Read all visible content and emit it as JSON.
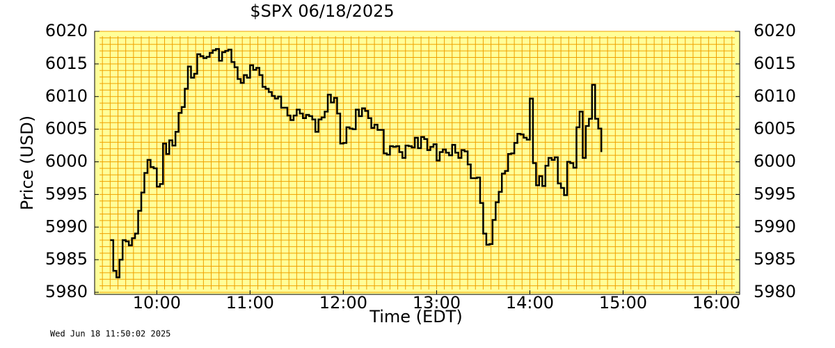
{
  "chart_data": {
    "type": "step",
    "title": "$SPX  06/18/2025",
    "ylabel": "Price (USD)",
    "xlabel": "Time (EDT)",
    "timestamp": "Wed Jun 18 11:50:02 2025",
    "xlim": [
      560,
      975
    ],
    "ylim": [
      5980,
      6020
    ],
    "xticks": [
      {
        "value": 600,
        "label": "10:00"
      },
      {
        "value": 660,
        "label": "11:00"
      },
      {
        "value": 720,
        "label": "12:00"
      },
      {
        "value": 780,
        "label": "13:00"
      },
      {
        "value": 840,
        "label": "14:00"
      },
      {
        "value": 900,
        "label": "15:00"
      },
      {
        "value": 960,
        "label": "16:00"
      }
    ],
    "yticks": [
      5980,
      5985,
      5990,
      5995,
      6000,
      6005,
      6010,
      6015,
      6020
    ],
    "minor_grid": {
      "x": 5,
      "y": 1
    },
    "grid_color": "#f0a000",
    "background": "#ffff99",
    "color": "#000000",
    "x": [
      570,
      572,
      574,
      576,
      578,
      580,
      582,
      584,
      586,
      588,
      590,
      592,
      594,
      596,
      598,
      600,
      602,
      604,
      606,
      608,
      610,
      612,
      614,
      616,
      618,
      620,
      622,
      624,
      626,
      628,
      630,
      632,
      634,
      636,
      638,
      640,
      642,
      644,
      646,
      648,
      650,
      652,
      654,
      656,
      658,
      660,
      662,
      664,
      666,
      668,
      670,
      672,
      674,
      676,
      678,
      680,
      682,
      684,
      686,
      688,
      690,
      692,
      694,
      696,
      698,
      700,
      702,
      704,
      706,
      708,
      710,
      712,
      714,
      716,
      718,
      720,
      722,
      724,
      726,
      728,
      730,
      732,
      734,
      736,
      738,
      740,
      742,
      744,
      746,
      748,
      750,
      752,
      754,
      756,
      758,
      760,
      762,
      764,
      766,
      768,
      770,
      772,
      774,
      776,
      778,
      780,
      782,
      784,
      786,
      788,
      790,
      792,
      794,
      796,
      798,
      800,
      802,
      804,
      806,
      808,
      810,
      812,
      814,
      816,
      818,
      820,
      822,
      824,
      826,
      828,
      830,
      832,
      834,
      836,
      838,
      840,
      842,
      844,
      846,
      848,
      850,
      852,
      854,
      856,
      858,
      860,
      862,
      864,
      866,
      868,
      870,
      872,
      874,
      876,
      878,
      880,
      882,
      884,
      886
    ],
    "values": [
      5988,
      5983.3,
      5982.3,
      5985,
      5988,
      5987.8,
      5987.2,
      5988.3,
      5989,
      5992.5,
      5995.3,
      5998.3,
      6000.3,
      5999.2,
      5999,
      5996.2,
      5996.6,
      6002.8,
      6001.2,
      6003.3,
      6002.5,
      6004.6,
      6007.5,
      6008.4,
      6011.2,
      6014.6,
      6012.9,
      6013.5,
      6016.5,
      6016.2,
      6015.9,
      6016.1,
      6016.7,
      6017.1,
      6017.3,
      6015.5,
      6016.8,
      6017,
      6017.2,
      6015.3,
      6014.5,
      6012.7,
      6012.1,
      6013.3,
      6012.9,
      6014.8,
      6014.1,
      6014.4,
      6013.3,
      6011.5,
      6011.2,
      6010.7,
      6010.1,
      6009.7,
      6010,
      6008.3,
      6008.3,
      6007.1,
      6006.4,
      6007.1,
      6008,
      6007.4,
      6006.7,
      6007.2,
      6007,
      6006.5,
      6004.6,
      6006.5,
      6006.8,
      6007.7,
      6010.3,
      6009.1,
      6009.8,
      6007.4,
      6002.8,
      6002.9,
      6005.3,
      6005.1,
      6005,
      6008,
      6007,
      6008.2,
      6007.8,
      6006.7,
      6005.2,
      6005.7,
      6004.9,
      6004.9,
      6001.3,
      6001.1,
      6002.4,
      6002.3,
      6002.4,
      6001.5,
      6000.6,
      6002.5,
      6002.4,
      6002.2,
      6003.7,
      6002.1,
      6003.8,
      6003.5,
      6001.8,
      6002.3,
      6002.7,
      6000.2,
      6001.5,
      6001.9,
      6001.4,
      6001,
      6002.6,
      6001.4,
      6000.6,
      6001.8,
      6001.6,
      5999.6,
      5997.5,
      5997.5,
      5997.6,
      5993.7,
      5989,
      5987.3,
      5987.4,
      5991.1,
      5993.8,
      5995.4,
      5998.2,
      5998.6,
      6001.2,
      6001.3,
      6002.9,
      6004.3,
      6004.2,
      6003.7,
      6003.4,
      6009.7,
      5999.8,
      5996.4,
      5997.8,
      5996.3,
      5999.4,
      6000.6,
      6000.3,
      6000.7,
      5996.7,
      5996,
      5994.9,
      6000,
      5999.8,
      5999.1,
      6005.3,
      6007.7,
      6000.6,
      6005.5,
      6006.6,
      6011.8,
      6006.6,
      6005.1,
      6001.5
    ]
  }
}
